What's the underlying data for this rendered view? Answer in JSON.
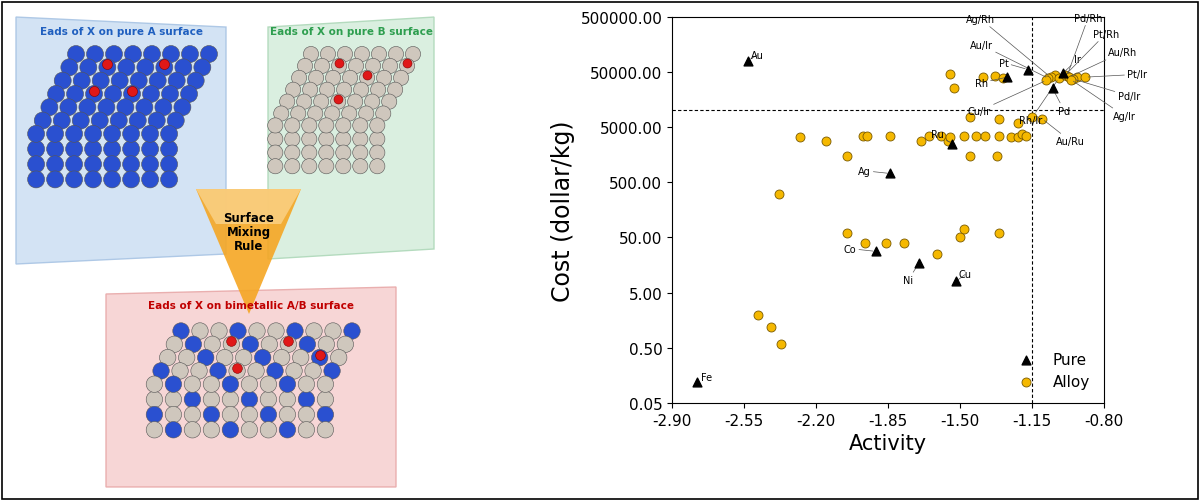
{
  "diagram": {
    "panels": [
      {
        "label": "Eads of X on pure A surface"
      },
      {
        "label": "Eads of X on pure B surface"
      },
      {
        "label": "Eads of X on bimetallic A/B surface"
      }
    ],
    "arrow": {
      "label": "Surface\nMixing\nRule"
    }
  },
  "chart_data": {
    "type": "scatter",
    "x_label": "Activity",
    "y_label": "Cost (dollar/kg)",
    "log": "y",
    "xlim": [
      -2.9,
      -0.8
    ],
    "xticks": [
      {
        "value": -2.9,
        "label": "-2.90"
      },
      {
        "value": -2.55,
        "label": "-2.55"
      },
      {
        "value": -2.2,
        "label": "-2.20"
      },
      {
        "value": -1.85,
        "label": "-1.85"
      },
      {
        "value": -1.5,
        "label": "-1.50"
      },
      {
        "value": -1.15,
        "label": "-1.15"
      },
      {
        "value": -0.8,
        "label": "-0.80"
      }
    ],
    "ylim": [
      0.05,
      500000
    ],
    "yticks": [
      {
        "value": 0.05,
        "label": "0.05"
      },
      {
        "value": 0.5,
        "label": "0.50"
      },
      {
        "value": 5,
        "label": "5.00"
      },
      {
        "value": 50,
        "label": "50.00"
      },
      {
        "value": 500,
        "label": "500.00"
      },
      {
        "value": 5000,
        "label": "5000.00"
      },
      {
        "value": 50000,
        "label": "50000.00"
      },
      {
        "value": 500000,
        "label": "500000.00"
      }
    ],
    "reference_lines": {
      "x": -1.15,
      "y": 10000
    },
    "legend": "lower right",
    "series": [
      {
        "name": "Pure",
        "color": "#000000",
        "marker": "triangle",
        "x": [
          -2.53,
          -1.84,
          -1.54,
          -1.91,
          -1.7,
          -1.52,
          -2.78,
          -1.17,
          -1.27,
          -1.0,
          -1.05
        ],
        "values": [
          80000,
          720,
          2500,
          28,
          17,
          8,
          0.12,
          55000,
          40000,
          47000,
          25000
        ],
        "point_labels": [
          "Au",
          "Ag",
          "Ru",
          "Co",
          "Ni",
          "Cu",
          "Fe",
          "Pt",
          "Rh",
          "Ir",
          "Pd"
        ]
      },
      {
        "name": "Alloy",
        "color": "#F5B800",
        "marker": "circle",
        "x": [
          -2.48,
          -2.42,
          -2.37,
          -2.38,
          -2.28,
          -2.15,
          -2.05,
          -1.97,
          -1.95,
          -1.84,
          -2.05,
          -1.96,
          -1.86,
          -1.77,
          -1.61,
          -1.5,
          -1.48,
          -1.31,
          -1.69,
          -1.65,
          -1.59,
          -1.56,
          -1.55,
          -1.48,
          -1.42,
          -1.38,
          -1.31,
          -1.25,
          -1.22,
          -1.2,
          -1.18,
          -1.45,
          -1.31,
          -1.22,
          -1.15,
          -1.45,
          -1.32,
          -1.55,
          -1.53,
          -1.39,
          -1.33,
          -1.29,
          -1.04,
          -0.93,
          -1.06,
          -1.07,
          -1.08,
          -1.02,
          -0.98,
          -0.99,
          -0.97,
          -0.89,
          -0.95,
          -0.96,
          -1.1
        ],
        "values": [
          2,
          1.2,
          0.6,
          300,
          3300,
          2800,
          1500,
          3500,
          3500,
          3500,
          60,
          40,
          40,
          40,
          25,
          50,
          70,
          60,
          2800,
          3500,
          3500,
          2800,
          3300,
          3500,
          3500,
          3500,
          3500,
          3300,
          3300,
          3800,
          3500,
          7500,
          7000,
          6000,
          7500,
          1500,
          1500,
          45000,
          25000,
          40000,
          42000,
          38000,
          44000,
          41000,
          40000,
          38000,
          35000,
          38000,
          42000,
          43000,
          40000,
          40000,
          37000,
          36000,
          7000
        ],
        "point_labels": [
          null,
          null,
          null,
          null,
          null,
          null,
          null,
          null,
          null,
          null,
          null,
          null,
          null,
          null,
          null,
          null,
          null,
          null,
          null,
          null,
          null,
          null,
          null,
          null,
          null,
          null,
          null,
          null,
          null,
          null,
          null,
          null,
          null,
          null,
          null,
          null,
          null,
          null,
          null,
          null,
          null,
          null,
          null,
          null,
          "Ag/Rh",
          "Au/Ir",
          "Cu/Ir",
          "Rh/Ir",
          "Pd/Rh",
          "Pt/Rh",
          "Au/Rh",
          "Pt/Ir",
          "Pd/Ir",
          "Ag/Ir",
          "Au/Ru"
        ]
      }
    ]
  }
}
